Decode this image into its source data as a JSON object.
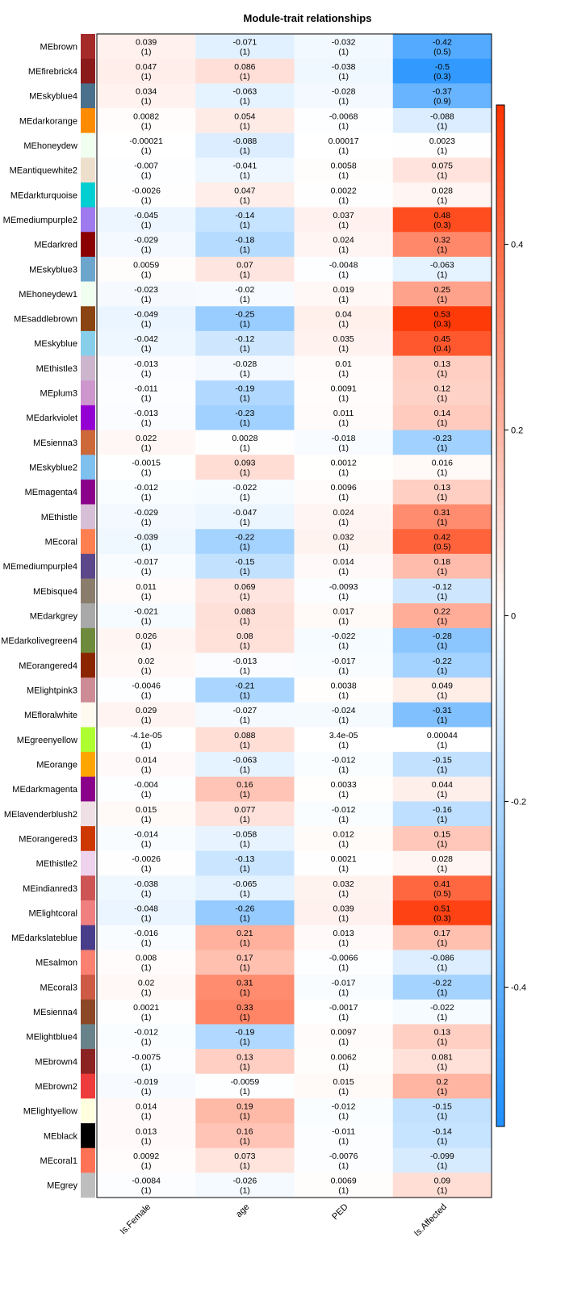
{
  "chart_data": {
    "type": "heatmap",
    "title": "Module-trait relationships",
    "columns": [
      "Is.Female",
      "age",
      "PED",
      "Is.Affected"
    ],
    "rows": [
      {
        "name": "MEbrown",
        "color": "#A52A2A",
        "values": [
          "0.039",
          "-0.071",
          "-0.032",
          "-0.42"
        ],
        "pvalues": [
          "(1)",
          "(1)",
          "(1)",
          "(0.5)"
        ]
      },
      {
        "name": "MEfirebrick4",
        "color": "#8B1A1A",
        "values": [
          "0.047",
          "0.086",
          "-0.038",
          "-0.5"
        ],
        "pvalues": [
          "(1)",
          "(1)",
          "(1)",
          "(0.3)"
        ]
      },
      {
        "name": "MEskyblue4",
        "color": "#4A708B",
        "values": [
          "0.034",
          "-0.063",
          "-0.028",
          "-0.37"
        ],
        "pvalues": [
          "(1)",
          "(1)",
          "(1)",
          "(0.9)"
        ]
      },
      {
        "name": "MEdarkorange",
        "color": "#FF8C00",
        "values": [
          "0.0082",
          "0.054",
          "-0.0068",
          "-0.088"
        ],
        "pvalues": [
          "(1)",
          "(1)",
          "(1)",
          "(1)"
        ]
      },
      {
        "name": "MEhoneydew",
        "color": "#F0FFF0",
        "values": [
          "-0.00021",
          "-0.088",
          "0.00017",
          "0.0023"
        ],
        "pvalues": [
          "(1)",
          "(1)",
          "(1)",
          "(1)"
        ]
      },
      {
        "name": "MEantiquewhite2",
        "color": "#EEDFCC",
        "values": [
          "-0.007",
          "-0.041",
          "0.0058",
          "0.075"
        ],
        "pvalues": [
          "(1)",
          "(1)",
          "(1)",
          "(1)"
        ]
      },
      {
        "name": "MEdarkturquoise",
        "color": "#00CED1",
        "values": [
          "-0.0026",
          "0.047",
          "0.0022",
          "0.028"
        ],
        "pvalues": [
          "(1)",
          "(1)",
          "(1)",
          "(1)"
        ]
      },
      {
        "name": "MEmediumpurple2",
        "color": "#9F79EE",
        "values": [
          "-0.045",
          "-0.14",
          "0.037",
          "0.48"
        ],
        "pvalues": [
          "(1)",
          "(1)",
          "(1)",
          "(0.3)"
        ]
      },
      {
        "name": "MEdarkred",
        "color": "#8B0000",
        "values": [
          "-0.029",
          "-0.18",
          "0.024",
          "0.32"
        ],
        "pvalues": [
          "(1)",
          "(1)",
          "(1)",
          "(1)"
        ]
      },
      {
        "name": "MEskyblue3",
        "color": "#6CA6CD",
        "values": [
          "0.0059",
          "0.07",
          "-0.0048",
          "-0.063"
        ],
        "pvalues": [
          "(1)",
          "(1)",
          "(1)",
          "(1)"
        ]
      },
      {
        "name": "MEhoneydew1",
        "color": "#F0FFF0",
        "values": [
          "-0.023",
          "-0.02",
          "0.019",
          "0.25"
        ],
        "pvalues": [
          "(1)",
          "(1)",
          "(1)",
          "(1)"
        ]
      },
      {
        "name": "MEsaddlebrown",
        "color": "#8B4513",
        "values": [
          "-0.049",
          "-0.25",
          "0.04",
          "0.53"
        ],
        "pvalues": [
          "(1)",
          "(1)",
          "(1)",
          "(0.3)"
        ]
      },
      {
        "name": "MEskyblue",
        "color": "#87CEEB",
        "values": [
          "-0.042",
          "-0.12",
          "0.035",
          "0.45"
        ],
        "pvalues": [
          "(1)",
          "(1)",
          "(1)",
          "(0.4)"
        ]
      },
      {
        "name": "MEthistle3",
        "color": "#CDB5CD",
        "values": [
          "-0.013",
          "-0.028",
          "0.01",
          "0.13"
        ],
        "pvalues": [
          "(1)",
          "(1)",
          "(1)",
          "(1)"
        ]
      },
      {
        "name": "MEplum3",
        "color": "#CD96CD",
        "values": [
          "-0.011",
          "-0.19",
          "0.0091",
          "0.12"
        ],
        "pvalues": [
          "(1)",
          "(1)",
          "(1)",
          "(1)"
        ]
      },
      {
        "name": "MEdarkviolet",
        "color": "#9400D3",
        "values": [
          "-0.013",
          "-0.23",
          "0.011",
          "0.14"
        ],
        "pvalues": [
          "(1)",
          "(1)",
          "(1)",
          "(1)"
        ]
      },
      {
        "name": "MEsienna3",
        "color": "#CD6839",
        "values": [
          "0.022",
          "0.0028",
          "-0.018",
          "-0.23"
        ],
        "pvalues": [
          "(1)",
          "(1)",
          "(1)",
          "(1)"
        ]
      },
      {
        "name": "MEskyblue2",
        "color": "#7EC0EE",
        "values": [
          "-0.0015",
          "0.093",
          "0.0012",
          "0.016"
        ],
        "pvalues": [
          "(1)",
          "(1)",
          "(1)",
          "(1)"
        ]
      },
      {
        "name": "MEmagenta4",
        "color": "#8B008B",
        "values": [
          "-0.012",
          "-0.022",
          "0.0096",
          "0.13"
        ],
        "pvalues": [
          "(1)",
          "(1)",
          "(1)",
          "(1)"
        ]
      },
      {
        "name": "MEthistle",
        "color": "#D8BFD8",
        "values": [
          "-0.029",
          "-0.047",
          "0.024",
          "0.31"
        ],
        "pvalues": [
          "(1)",
          "(1)",
          "(1)",
          "(1)"
        ]
      },
      {
        "name": "MEcoral",
        "color": "#FF7F50",
        "values": [
          "-0.039",
          "-0.22",
          "0.032",
          "0.42"
        ],
        "pvalues": [
          "(1)",
          "(1)",
          "(1)",
          "(0.5)"
        ]
      },
      {
        "name": "MEmediumpurple4",
        "color": "#5D478B",
        "values": [
          "-0.017",
          "-0.15",
          "0.014",
          "0.18"
        ],
        "pvalues": [
          "(1)",
          "(1)",
          "(1)",
          "(1)"
        ]
      },
      {
        "name": "MEbisque4",
        "color": "#8B7D6B",
        "values": [
          "0.011",
          "0.069",
          "-0.0093",
          "-0.12"
        ],
        "pvalues": [
          "(1)",
          "(1)",
          "(1)",
          "(1)"
        ]
      },
      {
        "name": "MEdarkgrey",
        "color": "#A9A9A9",
        "values": [
          "-0.021",
          "0.083",
          "0.017",
          "0.22"
        ],
        "pvalues": [
          "(1)",
          "(1)",
          "(1)",
          "(1)"
        ]
      },
      {
        "name": "MEdarkolivegreen4",
        "color": "#6E8B3D",
        "values": [
          "0.026",
          "0.08",
          "-0.022",
          "-0.28"
        ],
        "pvalues": [
          "(1)",
          "(1)",
          "(1)",
          "(1)"
        ]
      },
      {
        "name": "MEorangered4",
        "color": "#8B2500",
        "values": [
          "0.02",
          "-0.013",
          "-0.017",
          "-0.22"
        ],
        "pvalues": [
          "(1)",
          "(1)",
          "(1)",
          "(1)"
        ]
      },
      {
        "name": "MElightpink3",
        "color": "#CD8C95",
        "values": [
          "-0.0046",
          "-0.21",
          "0.0038",
          "0.049"
        ],
        "pvalues": [
          "(1)",
          "(1)",
          "(1)",
          "(1)"
        ]
      },
      {
        "name": "MEfloralwhite",
        "color": "#FFFAF0",
        "values": [
          "0.029",
          "-0.027",
          "-0.024",
          "-0.31"
        ],
        "pvalues": [
          "(1)",
          "(1)",
          "(1)",
          "(1)"
        ]
      },
      {
        "name": "MEgreenyellow",
        "color": "#ADFF2F",
        "values": [
          "-4.1e-05",
          "0.088",
          "3.4e-05",
          "0.00044"
        ],
        "pvalues": [
          "(1)",
          "(1)",
          "(1)",
          "(1)"
        ]
      },
      {
        "name": "MEorange",
        "color": "#FFA500",
        "values": [
          "0.014",
          "-0.063",
          "-0.012",
          "-0.15"
        ],
        "pvalues": [
          "(1)",
          "(1)",
          "(1)",
          "(1)"
        ]
      },
      {
        "name": "MEdarkmagenta",
        "color": "#8B008B",
        "values": [
          "-0.004",
          "0.16",
          "0.0033",
          "0.044"
        ],
        "pvalues": [
          "(1)",
          "(1)",
          "(1)",
          "(1)"
        ]
      },
      {
        "name": "MElavenderblush2",
        "color": "#EEE0E5",
        "values": [
          "0.015",
          "0.077",
          "-0.012",
          "-0.16"
        ],
        "pvalues": [
          "(1)",
          "(1)",
          "(1)",
          "(1)"
        ]
      },
      {
        "name": "MEorangered3",
        "color": "#CD3700",
        "values": [
          "-0.014",
          "-0.058",
          "0.012",
          "0.15"
        ],
        "pvalues": [
          "(1)",
          "(1)",
          "(1)",
          "(1)"
        ]
      },
      {
        "name": "MEthistle2",
        "color": "#EED2EE",
        "values": [
          "-0.0026",
          "-0.13",
          "0.0021",
          "0.028"
        ],
        "pvalues": [
          "(1)",
          "(1)",
          "(1)",
          "(1)"
        ]
      },
      {
        "name": "MEindianred3",
        "color": "#CD5555",
        "values": [
          "-0.038",
          "-0.065",
          "0.032",
          "0.41"
        ],
        "pvalues": [
          "(1)",
          "(1)",
          "(1)",
          "(0.5)"
        ]
      },
      {
        "name": "MElightcoral",
        "color": "#F08080",
        "values": [
          "-0.048",
          "-0.26",
          "0.039",
          "0.51"
        ],
        "pvalues": [
          "(1)",
          "(1)",
          "(1)",
          "(0.3)"
        ]
      },
      {
        "name": "MEdarkslateblue",
        "color": "#483D8B",
        "values": [
          "-0.016",
          "0.21",
          "0.013",
          "0.17"
        ],
        "pvalues": [
          "(1)",
          "(1)",
          "(1)",
          "(1)"
        ]
      },
      {
        "name": "MEsalmon",
        "color": "#FA8072",
        "values": [
          "0.008",
          "0.17",
          "-0.0066",
          "-0.086"
        ],
        "pvalues": [
          "(1)",
          "(1)",
          "(1)",
          "(1)"
        ]
      },
      {
        "name": "MEcoral3",
        "color": "#CD5B45",
        "values": [
          "0.02",
          "0.31",
          "-0.017",
          "-0.22"
        ],
        "pvalues": [
          "(1)",
          "(1)",
          "(1)",
          "(1)"
        ]
      },
      {
        "name": "MEsienna4",
        "color": "#8B4726",
        "values": [
          "0.0021",
          "0.33",
          "-0.0017",
          "-0.022"
        ],
        "pvalues": [
          "(1)",
          "(1)",
          "(1)",
          "(1)"
        ]
      },
      {
        "name": "MElightblue4",
        "color": "#68838B",
        "values": [
          "-0.012",
          "-0.19",
          "0.0097",
          "0.13"
        ],
        "pvalues": [
          "(1)",
          "(1)",
          "(1)",
          "(1)"
        ]
      },
      {
        "name": "MEbrown4",
        "color": "#8B2323",
        "values": [
          "-0.0075",
          "0.13",
          "0.0062",
          "0.081"
        ],
        "pvalues": [
          "(1)",
          "(1)",
          "(1)",
          "(1)"
        ]
      },
      {
        "name": "MEbrown2",
        "color": "#EE3B3B",
        "values": [
          "-0.019",
          "-0.0059",
          "0.015",
          "0.2"
        ],
        "pvalues": [
          "(1)",
          "(1)",
          "(1)",
          "(1)"
        ]
      },
      {
        "name": "MElightyellow",
        "color": "#FFFFE0",
        "values": [
          "0.014",
          "0.19",
          "-0.012",
          "-0.15"
        ],
        "pvalues": [
          "(1)",
          "(1)",
          "(1)",
          "(1)"
        ]
      },
      {
        "name": "MEblack",
        "color": "#000000",
        "values": [
          "0.013",
          "0.16",
          "-0.011",
          "-0.14"
        ],
        "pvalues": [
          "(1)",
          "(1)",
          "(1)",
          "(1)"
        ]
      },
      {
        "name": "MEcoral1",
        "color": "#FF7256",
        "values": [
          "0.0092",
          "0.073",
          "-0.0076",
          "-0.099"
        ],
        "pvalues": [
          "(1)",
          "(1)",
          "(1)",
          "(1)"
        ]
      },
      {
        "name": "MEgrey",
        "color": "#BEBEBE",
        "values": [
          "-0.0084",
          "-0.026",
          "0.0069",
          "0.09"
        ],
        "pvalues": [
          "(1)",
          "(1)",
          "(1)",
          "(1)"
        ]
      }
    ],
    "colorscale": {
      "min": -0.55,
      "max": 0.55,
      "negative_color": "#1E90FF",
      "zero_color": "#FFFFFF",
      "positive_color": "#FF3300",
      "ticks": [
        "0.4",
        "0.2",
        "0",
        "-0.2",
        "-0.4"
      ],
      "tick_values": [
        0.4,
        0.2,
        0,
        -0.2,
        -0.4
      ]
    }
  }
}
